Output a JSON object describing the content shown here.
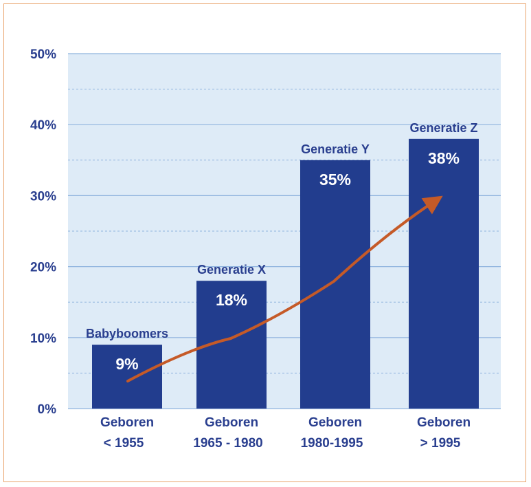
{
  "chart_data": {
    "type": "bar",
    "categories": [
      [
        "Geboren",
        "< 1955"
      ],
      [
        "Geboren",
        "1965 - 1980"
      ],
      [
        "Geboren",
        "1980-1995"
      ],
      [
        "Geboren",
        "> 1995"
      ]
    ],
    "generations": [
      "Babyboomers",
      "Generatie X",
      "Generatie Y",
      "Generatie Z"
    ],
    "values": [
      9,
      18,
      35,
      38
    ],
    "value_labels": [
      "9%",
      "18%",
      "35%",
      "38%"
    ],
    "ylim": [
      0,
      50
    ],
    "y_ticks": [
      0,
      10,
      20,
      30,
      40,
      50
    ],
    "y_tick_labels": [
      "0%",
      "10%",
      "20%",
      "30%",
      "40%",
      "50%"
    ],
    "grid": true,
    "trend_arrow": true,
    "title": "",
    "xlabel": "",
    "ylabel": ""
  },
  "colors": {
    "bar": "#223d8e",
    "plot_background": "#deebf7",
    "gridline": "#8fb3de",
    "text": "#2a3f8f",
    "arrow": "#c55a28",
    "border": "#e9a36b"
  }
}
